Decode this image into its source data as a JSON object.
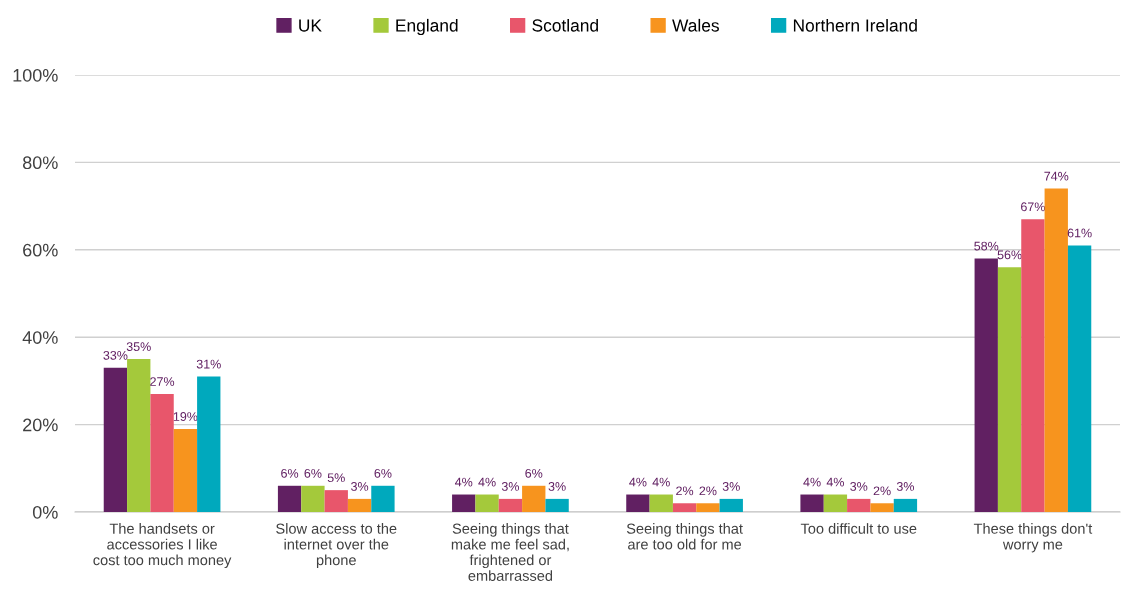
{
  "chart_data": {
    "type": "bar",
    "categories": [
      "The handsets or accessories I like cost too much money",
      "Slow access to the internet over the phone",
      "Seeing things that make me feel sad, frightened or embarrassed",
      "Seeing things that are too old for me",
      "Too difficult to use",
      "These things don't worry me"
    ],
    "series": [
      {
        "name": "UK",
        "color": "#612062",
        "values": [
          33,
          6,
          4,
          4,
          4,
          58
        ],
        "value_labels": [
          "33%",
          "6%",
          "4%",
          "4%",
          "4%",
          "58%"
        ]
      },
      {
        "name": "England",
        "color": "#a4c93b",
        "values": [
          35,
          6,
          4,
          4,
          4,
          56
        ],
        "value_labels": [
          "35%",
          "6%",
          "4%",
          "4%",
          "4%",
          "56%"
        ]
      },
      {
        "name": "Scotland",
        "color": "#e8566b",
        "values": [
          27,
          5,
          3,
          2,
          3,
          67
        ],
        "value_labels": [
          "27%",
          "5%",
          "3%",
          "2%",
          "3%",
          "67%"
        ]
      },
      {
        "name": "Wales",
        "color": "#f7941e",
        "values": [
          19,
          3,
          6,
          2,
          2,
          74
        ],
        "value_labels": [
          "19%",
          "3%",
          "6%",
          "2%",
          "2%",
          "74%"
        ]
      },
      {
        "name": "Northern Ireland",
        "color": "#00a9bd",
        "values": [
          31,
          6,
          3,
          3,
          3,
          61
        ],
        "value_labels": [
          "31%",
          "6%",
          "3%",
          "3%",
          "3%",
          "61%"
        ]
      }
    ],
    "ylim": [
      0,
      100
    ],
    "yticks": [
      {
        "value": 0,
        "label": "0%"
      },
      {
        "value": 20,
        "label": "20%"
      },
      {
        "value": 40,
        "label": "40%"
      },
      {
        "value": 60,
        "label": "60%"
      },
      {
        "value": 80,
        "label": "80%"
      },
      {
        "value": 100,
        "label": "100%"
      }
    ],
    "grid": "y",
    "legend": "top"
  }
}
